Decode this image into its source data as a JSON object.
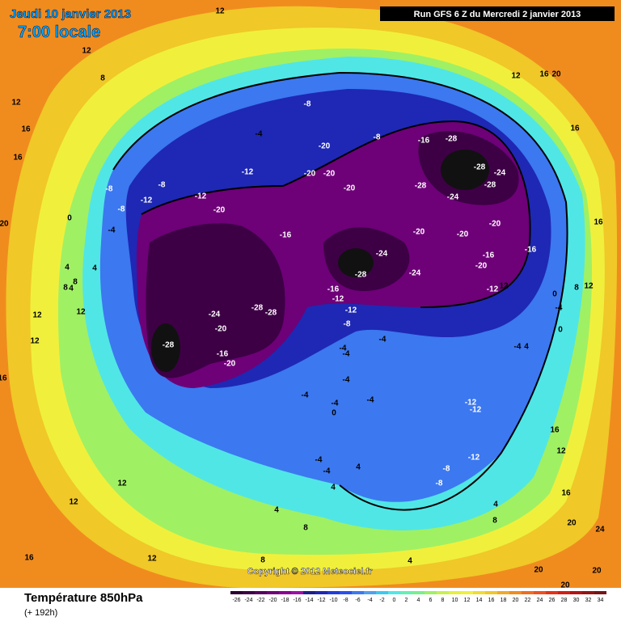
{
  "header": {
    "date": "Jeudi 10 janvier 2013",
    "time": "7:00 locale",
    "run": "Run GFS 6 Z du Mercredi 2 janvier 2013"
  },
  "footer": {
    "title": "Température 850hPa",
    "lead": "(+ 192h)",
    "copyright": "Copyright © 2012 Meteociel.fr"
  },
  "legend": {
    "ticks": [
      -26,
      -24,
      -22,
      -20,
      -18,
      -16,
      -14,
      -12,
      -10,
      -8,
      -6,
      -4,
      -2,
      0,
      2,
      4,
      6,
      8,
      10,
      12,
      14,
      16,
      18,
      20,
      22,
      24,
      26,
      28,
      30,
      32,
      34
    ],
    "colors": [
      "#2a0030",
      "#3d0045",
      "#55005f",
      "#6e0078",
      "#880090",
      "#9e10a8",
      "#1e1e8a",
      "#1e28b4",
      "#1e3cdc",
      "#2850f0",
      "#3c78f0",
      "#50a0f0",
      "#3cc8f0",
      "#50e6e6",
      "#64f0b4",
      "#78f08c",
      "#a0f064",
      "#c8f050",
      "#e6f03c",
      "#f0f03c",
      "#f0dc32",
      "#f0c828",
      "#f0aa28",
      "#f08c1e",
      "#f06e1e",
      "#f0501e",
      "#e63214",
      "#d21e14",
      "#b41414",
      "#961414",
      "#781414"
    ]
  },
  "map": {
    "labels": [
      "12",
      "8",
      "12",
      "16",
      "16",
      "20",
      "12",
      "20",
      "16",
      "12",
      "16",
      "16",
      "12",
      "8",
      "-8",
      "-8",
      "-16",
      "-28",
      "-4",
      "-12",
      "-20",
      "-20",
      "-20",
      "-20",
      "-8",
      "-8",
      "-8",
      "-12",
      "-12",
      "-20",
      "-4",
      "0",
      "-16",
      "-28",
      "-24",
      "-28",
      "-24",
      "-28",
      "-20",
      "-20",
      "-20",
      "-16",
      "-20",
      "-16",
      "-24",
      "-28",
      "-24",
      "-12",
      "12",
      "-16",
      "-12",
      "-12",
      "-8",
      "-24",
      "-28",
      "-28",
      "-20",
      "-28",
      "-16",
      "-20",
      "-4",
      "-4",
      "-4",
      "-4",
      "-4",
      "-4",
      "-4",
      "0",
      "4",
      "4",
      "4",
      "8",
      "8",
      "12",
      "12",
      "12",
      "16",
      "12",
      "12",
      "16",
      "12",
      "4",
      "8",
      "8",
      "4",
      "-12",
      "-12",
      "-12",
      "-8",
      "-8",
      "-4",
      "0",
      "-4",
      "0",
      "4",
      "4",
      "8",
      "16",
      "12",
      "16",
      "20",
      "20",
      "20",
      "20",
      "24",
      "-4",
      "-4",
      "4",
      "4"
    ]
  }
}
